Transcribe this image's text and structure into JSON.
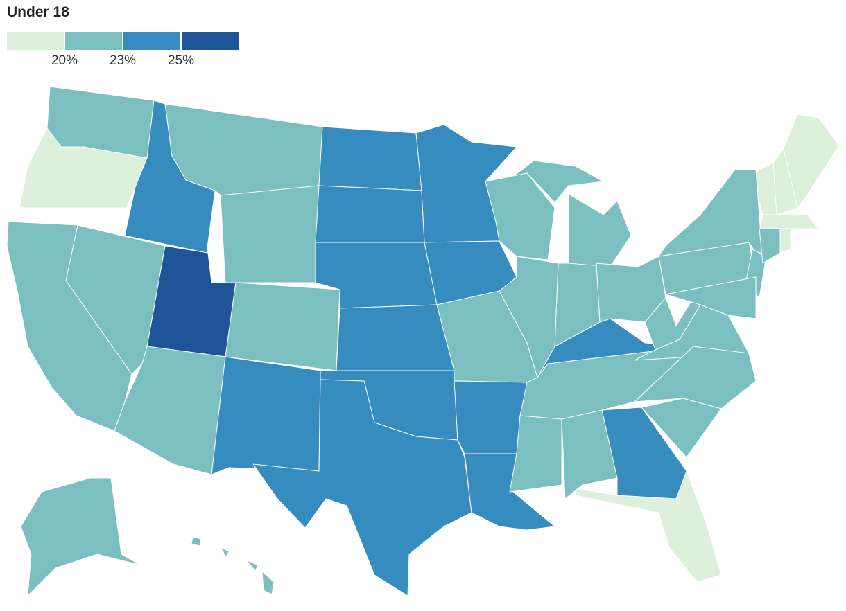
{
  "title": "Under 18",
  "legend": {
    "colors": [
      "#dcf0dc",
      "#7bbfc1",
      "#368cbf",
      "#1f5496"
    ],
    "breaks": [
      {
        "value": 20,
        "label": "20%"
      },
      {
        "value": 23,
        "label": "23%"
      },
      {
        "value": 25,
        "label": "25%"
      }
    ]
  },
  "regions": [
    1,
    0,
    2,
    1,
    1,
    3,
    1,
    1,
    1,
    1,
    2,
    2,
    2,
    2,
    2,
    2,
    2,
    1,
    2,
    2,
    1,
    2,
    1,
    2,
    0,
    1,
    1,
    2,
    2,
    1,
    1,
    1,
    1,
    1,
    1,
    1,
    1,
    1,
    1,
    0,
    0,
    0,
    0,
    0,
    1,
    1,
    1,
    1,
    1,
    1
  ]
}
